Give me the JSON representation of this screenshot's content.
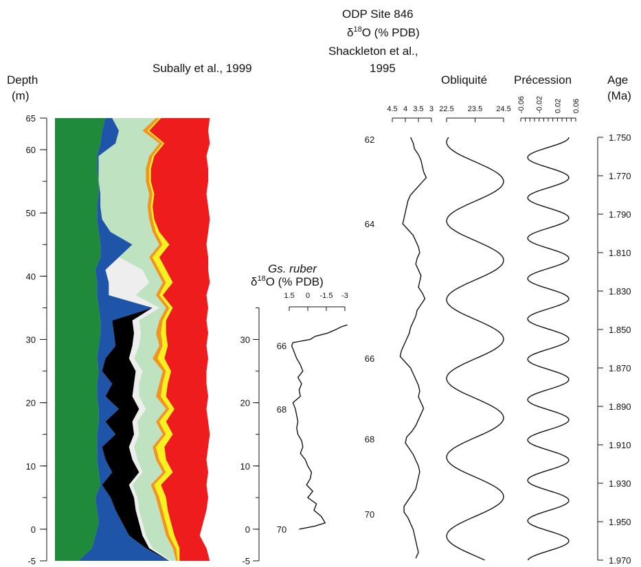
{
  "chart_data": {
    "type": "area",
    "headers": {
      "subally": "Subally et al., 1999",
      "depth_label_1": "Depth",
      "depth_label_2": "(m)",
      "ruber_1": "Gs. ruber",
      "ruber_2a": "δ",
      "ruber_2sup": "18",
      "ruber_2b": "O (% PDB)",
      "odp_1": "ODP Site 846",
      "odp_2a": "δ",
      "odp_2sup": "18",
      "odp_2b": "O (% PDB)",
      "odp_3": "Shackleton et al.,",
      "odp_4": "1995",
      "obliq": "Obliquité",
      "prec": "Précession",
      "age_1": "Age",
      "age_2": "(Ma)"
    },
    "depth_axis": {
      "ticks": [
        "65",
        "60",
        "50",
        "40",
        "30",
        "20",
        "10",
        "0",
        "-5"
      ],
      "values": [
        65,
        60,
        50,
        40,
        30,
        20,
        10,
        0,
        -5
      ],
      "range": [
        -5,
        65
      ]
    },
    "depth_axis2": {
      "ticks": [
        "30",
        "20",
        "10",
        "0",
        "-5"
      ],
      "values": [
        30,
        20,
        10,
        0,
        -5
      ]
    },
    "ruber_axis": {
      "ticks": [
        "1.5",
        "0",
        "-1.5",
        "-3"
      ],
      "values": [
        1.5,
        0,
        -1.5,
        -3
      ]
    },
    "odp_axis": {
      "ticks": [
        "4.5",
        "4",
        "3.5",
        "3"
      ],
      "values": [
        4.5,
        4,
        3.5,
        3
      ]
    },
    "obliq_axis": {
      "ticks": [
        "22.5",
        "23.5",
        "24.5"
      ],
      "values": [
        22.5,
        23.5,
        24.5
      ]
    },
    "prec_axis": {
      "ticks": [
        "-0.06",
        "-0.02",
        "0.02",
        "0.06"
      ],
      "values": [
        -0.06,
        -0.02,
        0.02,
        0.06
      ]
    },
    "age_axis": {
      "ticks": [
        "1.750",
        "1.770",
        "1.790",
        "1.810",
        "1.830",
        "1.850",
        "1.870",
        "1.890",
        "1.910",
        "1.930",
        "1.950",
        "1.970"
      ],
      "values": [
        1.75,
        1.77,
        1.79,
        1.81,
        1.83,
        1.85,
        1.87,
        1.89,
        1.91,
        1.93,
        1.95,
        1.97
      ]
    },
    "stage_labels": {
      "ruber": [
        {
          "text": "66",
          "depth": 29
        },
        {
          "text": "68",
          "depth": 19
        },
        {
          "text": "70",
          "depth": 0
        }
      ],
      "odp": [
        {
          "text": "62",
          "age": 1.751
        },
        {
          "text": "64",
          "age": 1.795
        },
        {
          "text": "66",
          "age": 1.865
        },
        {
          "text": "68",
          "age": 1.907
        },
        {
          "text": "70",
          "age": 1.946
        }
      ]
    },
    "area_layers": [
      {
        "name": "green",
        "color": "#1e8a3a"
      },
      {
        "name": "blue",
        "color": "#1f55a8"
      },
      {
        "name": "black",
        "color": "#000000"
      },
      {
        "name": "light-grey",
        "color": "#eeeeee"
      },
      {
        "name": "light-green",
        "color": "#bfe2c0"
      },
      {
        "name": "orange",
        "color": "#f0951f"
      },
      {
        "name": "yellow",
        "color": "#f7f21e"
      },
      {
        "name": "red",
        "color": "#ee1c1c"
      }
    ],
    "area_depths": [
      65,
      63,
      61,
      59,
      57,
      55,
      53,
      51,
      49,
      47,
      45,
      43,
      41,
      39,
      37,
      35,
      33,
      31,
      29,
      27,
      25,
      23,
      21,
      19,
      17,
      15,
      13,
      11,
      9,
      7,
      5,
      3,
      1,
      -1,
      -3,
      -5
    ],
    "area_boundaries": {
      "b1": [
        0.3,
        0.28,
        0.27,
        0.25,
        0.25,
        0.26,
        0.26,
        0.25,
        0.25,
        0.26,
        0.27,
        0.27,
        0.24,
        0.25,
        0.25,
        0.26,
        0.27,
        0.27,
        0.26,
        0.25,
        0.26,
        0.25,
        0.25,
        0.26,
        0.26,
        0.25,
        0.25,
        0.25,
        0.26,
        0.27,
        0.24,
        0.25,
        0.26,
        0.24,
        0.22,
        0.14
      ],
      "b2": [
        0.34,
        0.38,
        0.36,
        0.26,
        0.26,
        0.26,
        0.27,
        0.27,
        0.28,
        0.33,
        0.46,
        0.38,
        0.3,
        0.32,
        0.32,
        0.58,
        0.34,
        0.35,
        0.36,
        0.3,
        0.28,
        0.34,
        0.3,
        0.38,
        0.3,
        0.36,
        0.28,
        0.3,
        0.34,
        0.28,
        0.33,
        0.36,
        0.4,
        0.44,
        0.54,
        0.68
      ],
      "b3": [
        0.34,
        0.38,
        0.36,
        0.26,
        0.26,
        0.26,
        0.27,
        0.27,
        0.28,
        0.33,
        0.46,
        0.38,
        0.3,
        0.32,
        0.32,
        0.58,
        0.46,
        0.47,
        0.46,
        0.44,
        0.48,
        0.47,
        0.46,
        0.5,
        0.46,
        0.47,
        0.44,
        0.46,
        0.5,
        0.44,
        0.47,
        0.48,
        0.5,
        0.52,
        0.56,
        0.68
      ],
      "b4": [
        0.34,
        0.38,
        0.36,
        0.26,
        0.26,
        0.26,
        0.27,
        0.27,
        0.28,
        0.33,
        0.46,
        0.38,
        0.52,
        0.56,
        0.48,
        0.62,
        0.5,
        0.51,
        0.5,
        0.47,
        0.52,
        0.5,
        0.5,
        0.54,
        0.49,
        0.5,
        0.47,
        0.49,
        0.52,
        0.46,
        0.49,
        0.5,
        0.52,
        0.54,
        0.58,
        0.69
      ],
      "b5": [
        0.6,
        0.52,
        0.62,
        0.56,
        0.54,
        0.54,
        0.56,
        0.55,
        0.56,
        0.58,
        0.62,
        0.56,
        0.6,
        0.64,
        0.6,
        0.66,
        0.62,
        0.6,
        0.62,
        0.58,
        0.64,
        0.62,
        0.6,
        0.66,
        0.6,
        0.64,
        0.58,
        0.6,
        0.64,
        0.57,
        0.6,
        0.62,
        0.64,
        0.66,
        0.7,
        0.72
      ],
      "b6": [
        0.62,
        0.55,
        0.64,
        0.58,
        0.56,
        0.56,
        0.58,
        0.57,
        0.58,
        0.6,
        0.64,
        0.58,
        0.62,
        0.66,
        0.62,
        0.68,
        0.64,
        0.63,
        0.64,
        0.61,
        0.66,
        0.64,
        0.63,
        0.68,
        0.62,
        0.66,
        0.6,
        0.62,
        0.66,
        0.59,
        0.62,
        0.64,
        0.66,
        0.68,
        0.72,
        0.73
      ],
      "b7": [
        0.63,
        0.56,
        0.65,
        0.59,
        0.57,
        0.57,
        0.59,
        0.58,
        0.59,
        0.62,
        0.68,
        0.62,
        0.66,
        0.7,
        0.64,
        0.7,
        0.66,
        0.66,
        0.67,
        0.65,
        0.69,
        0.67,
        0.66,
        0.71,
        0.66,
        0.7,
        0.65,
        0.66,
        0.7,
        0.63,
        0.66,
        0.67,
        0.69,
        0.71,
        0.74,
        0.74
      ],
      "b8": [
        0.92,
        0.91,
        0.92,
        0.9,
        0.91,
        0.91,
        0.9,
        0.91,
        0.92,
        0.91,
        0.9,
        0.91,
        0.91,
        0.92,
        0.9,
        0.91,
        0.9,
        0.91,
        0.9,
        0.91,
        0.9,
        0.9,
        0.91,
        0.9,
        0.91,
        0.92,
        0.91,
        0.9,
        0.91,
        0.9,
        0.91,
        0.9,
        0.88,
        0.86,
        0.9,
        0.92
      ]
    },
    "ruber_series": {
      "depth": [
        32.3,
        32,
        31.5,
        31,
        30.5,
        30,
        29.5,
        29,
        28,
        27,
        26,
        25,
        24,
        23,
        22,
        21,
        20,
        19,
        18,
        17,
        16,
        15,
        14,
        13,
        12,
        11,
        10,
        9,
        8,
        7,
        6,
        5,
        4,
        3,
        2,
        1,
        0.5,
        0
      ],
      "value": [
        -3.2,
        -2.7,
        -2.2,
        -1.6,
        -0.6,
        -0.2,
        1.2,
        1.3,
        1.1,
        0.9,
        0.6,
        0.4,
        0.8,
        0.5,
        0.7,
        0.6,
        1.2,
        1.0,
        0.9,
        0.8,
        0.9,
        0.8,
        0.5,
        0.4,
        0.6,
        0.2,
        0,
        -0.3,
        -0.2,
        0.1,
        -0.4,
        0,
        -0.7,
        -0.5,
        -1.1,
        -1.4,
        -0.6,
        0.7
      ]
    },
    "odp_series": {
      "age": [
        1.75,
        1.753,
        1.756,
        1.759,
        1.762,
        1.765,
        1.768,
        1.771,
        1.774,
        1.777,
        1.78,
        1.783,
        1.786,
        1.789,
        1.792,
        1.795,
        1.798,
        1.801,
        1.804,
        1.807,
        1.81,
        1.813,
        1.816,
        1.819,
        1.822,
        1.825,
        1.828,
        1.831,
        1.834,
        1.837,
        1.84,
        1.843,
        1.846,
        1.849,
        1.852,
        1.855,
        1.858,
        1.861,
        1.864,
        1.867,
        1.87,
        1.873,
        1.876,
        1.879,
        1.882,
        1.885,
        1.888,
        1.891,
        1.894,
        1.897,
        1.9,
        1.903,
        1.906,
        1.909,
        1.912,
        1.915,
        1.918,
        1.921,
        1.924,
        1.927,
        1.93,
        1.933,
        1.936,
        1.939,
        1.942,
        1.945,
        1.948,
        1.951,
        1.954,
        1.957,
        1.96,
        1.963,
        1.966,
        1.969
      ],
      "value": [
        3.8,
        3.7,
        3.65,
        3.5,
        3.4,
        3.35,
        3.3,
        3.2,
        3.4,
        3.6,
        3.8,
        3.9,
        3.95,
        4.0,
        4.05,
        4.1,
        3.9,
        3.7,
        3.6,
        3.5,
        3.45,
        3.55,
        3.6,
        3.5,
        3.4,
        3.45,
        3.5,
        3.35,
        3.25,
        3.4,
        3.55,
        3.6,
        3.7,
        3.8,
        3.85,
        3.95,
        4.05,
        4.15,
        4.2,
        4.0,
        3.8,
        3.7,
        3.6,
        3.5,
        3.45,
        3.5,
        3.4,
        3.3,
        3.4,
        3.5,
        3.6,
        3.75,
        3.95,
        4.0,
        3.85,
        3.7,
        3.6,
        3.5,
        3.45,
        3.5,
        3.55,
        3.6,
        3.75,
        3.9,
        4.05,
        4.05,
        3.9,
        3.8,
        3.7,
        3.65,
        3.6,
        3.55,
        3.5,
        3.6
      ]
    },
    "obliquity_curve": {
      "amplitude": 1.0,
      "center": 23.5,
      "period_ma": 0.041,
      "phase_age": 1.773
    },
    "precession_curve": {
      "amplitude": 0.045,
      "center": 0.0,
      "period_ma": 0.021,
      "phase_age": 1.75
    }
  }
}
